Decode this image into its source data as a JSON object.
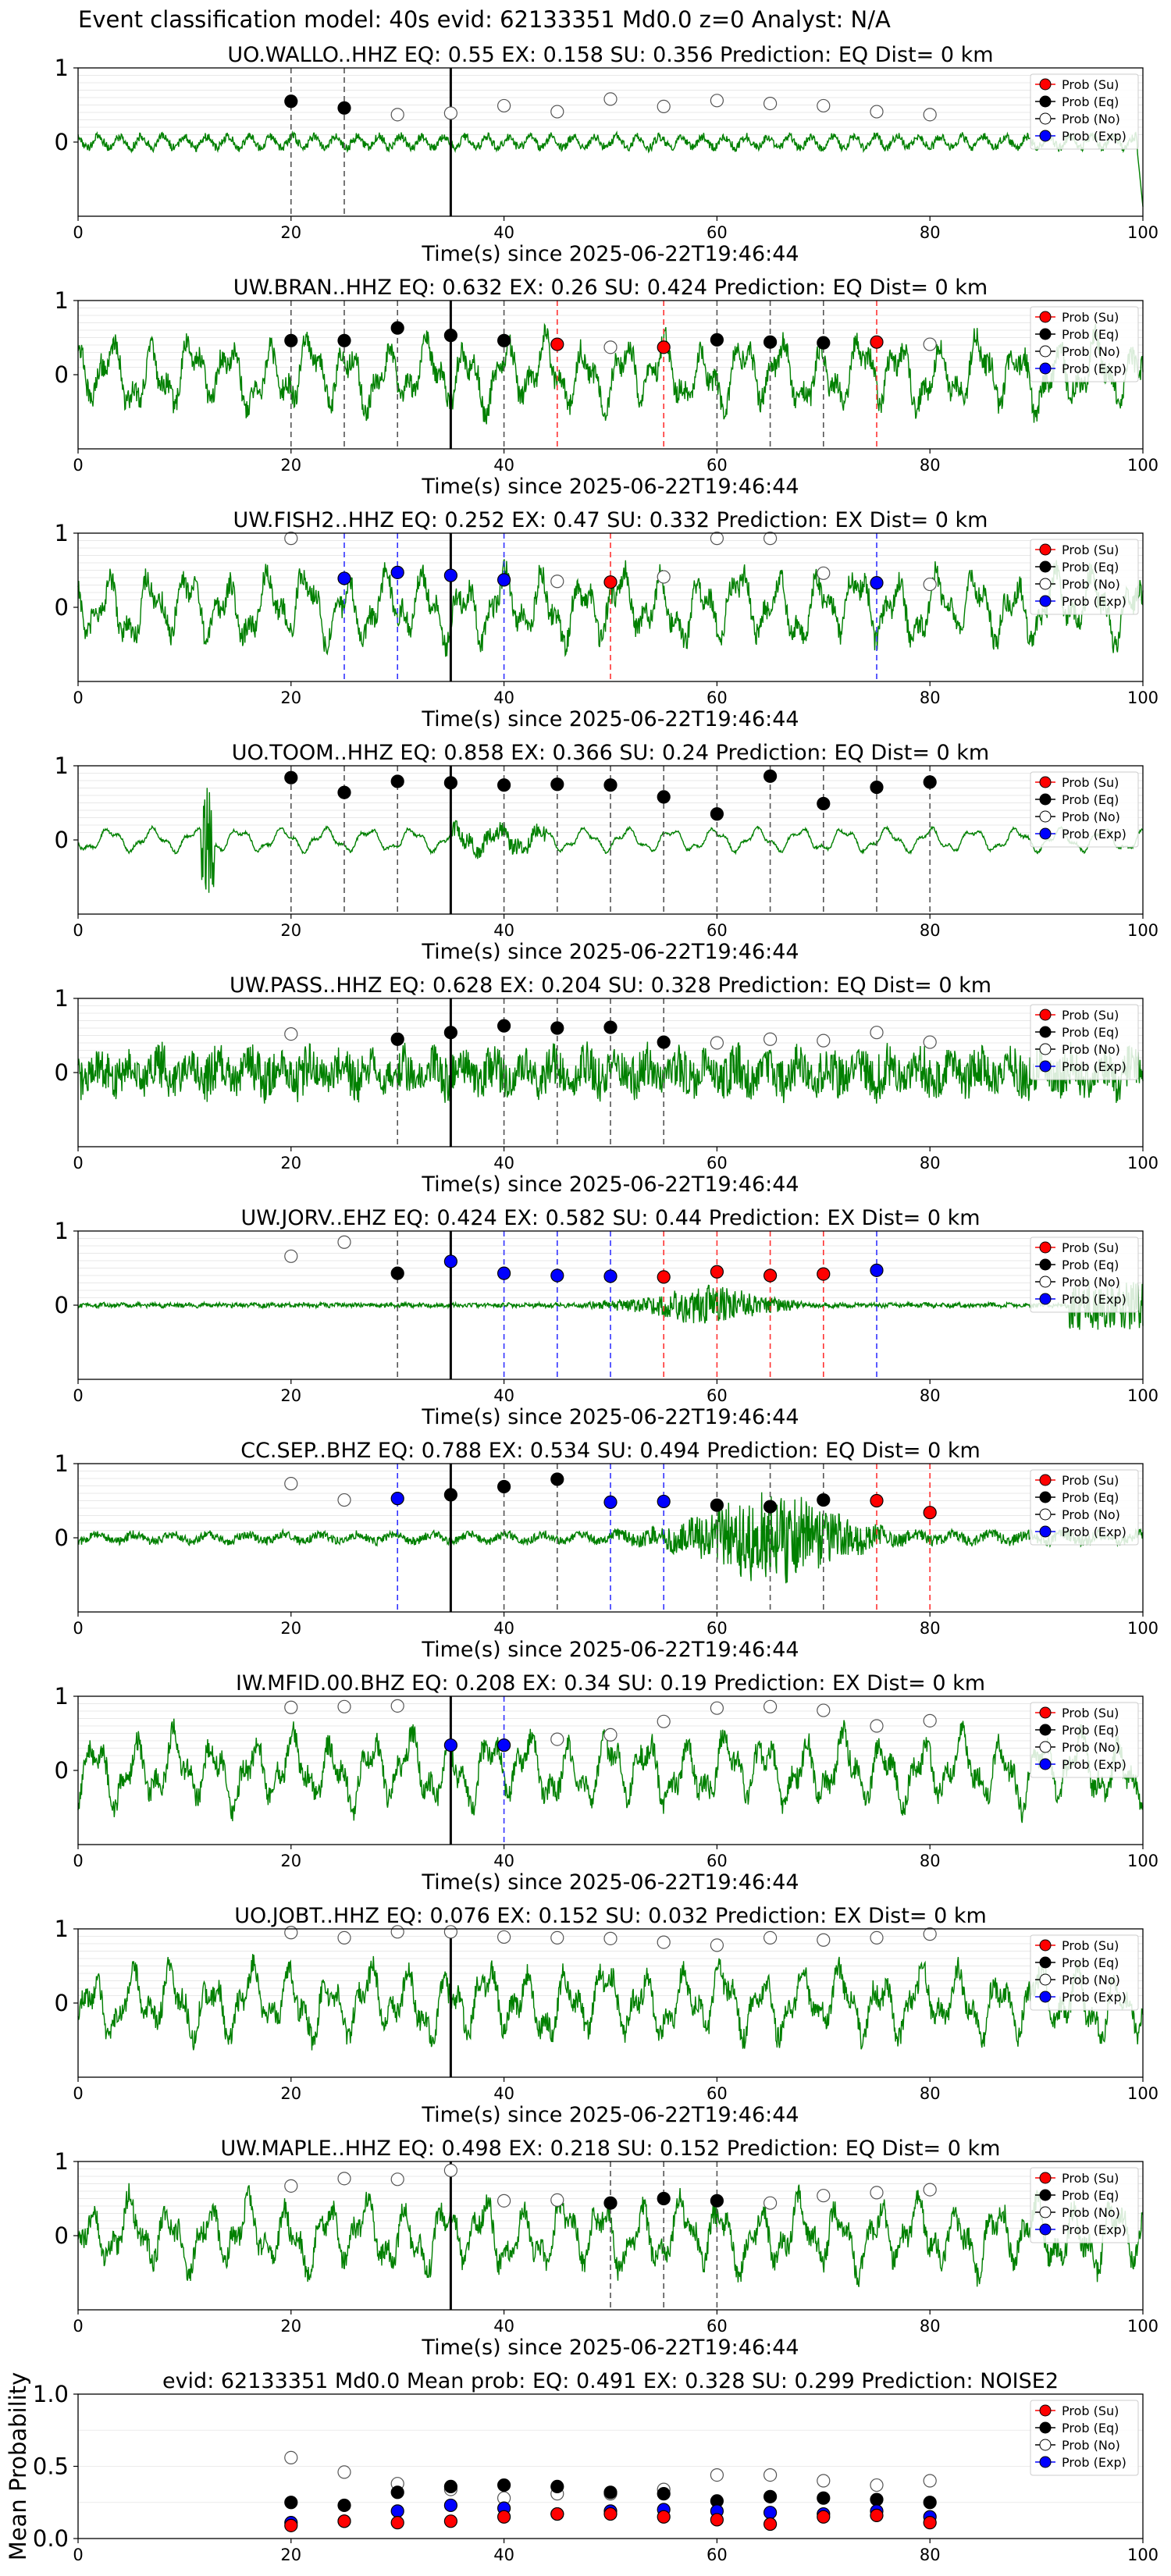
{
  "figure_title": "Event classification model: 40s evid: 62133351 Md0.0 z=0 Analyst: N/A",
  "legend_labels": [
    "Prob (Su)",
    "Prob (Eq)",
    "Prob (No)",
    "Prob (Exp)"
  ],
  "colors": {
    "su": "#ff0000",
    "eq": "#000000",
    "no": "#ffffff",
    "exp": "#0000ff",
    "waveform": "#008000",
    "su_line": "#ff3333",
    "exp_line": "#3333ff"
  },
  "chart_data": [
    {
      "type": "line",
      "title": "UO.WALLO..HHZ   EQ: 0.55   EX: 0.158   SU: 0.356   Prediction: EQ    Dist= 0 km",
      "xlabel": "Time(s) since 2025-06-22T19:46:44",
      "ylabel": "",
      "xlim": [
        0,
        100
      ],
      "ylim": [
        -1,
        1
      ],
      "xticks": [
        0,
        20,
        40,
        60,
        80,
        100
      ],
      "yticks": [
        1,
        0
      ],
      "waveform_style": "low",
      "onset": 35,
      "points": [
        {
          "t": 20,
          "p": 0.55,
          "c": "eq",
          "line": true
        },
        {
          "t": 25,
          "p": 0.46,
          "c": "eq",
          "line": true
        },
        {
          "t": 30,
          "p": 0.37,
          "c": "no"
        },
        {
          "t": 35,
          "p": 0.39,
          "c": "no"
        },
        {
          "t": 40,
          "p": 0.49,
          "c": "no"
        },
        {
          "t": 45,
          "p": 0.41,
          "c": "no"
        },
        {
          "t": 50,
          "p": 0.58,
          "c": "no"
        },
        {
          "t": 55,
          "p": 0.48,
          "c": "no"
        },
        {
          "t": 60,
          "p": 0.56,
          "c": "no"
        },
        {
          "t": 65,
          "p": 0.52,
          "c": "no"
        },
        {
          "t": 70,
          "p": 0.49,
          "c": "no"
        },
        {
          "t": 75,
          "p": 0.41,
          "c": "no"
        },
        {
          "t": 80,
          "p": 0.37,
          "c": "no"
        }
      ]
    },
    {
      "type": "line",
      "title": "UW.BRAN..HHZ   EQ: 0.632   EX: 0.26   SU: 0.424   Prediction: EQ    Dist= 0 km",
      "xlabel": "Time(s) since 2025-06-22T19:46:44",
      "ylabel": "",
      "xlim": [
        0,
        100
      ],
      "ylim": [
        -1,
        1
      ],
      "xticks": [
        0,
        20,
        40,
        60,
        80,
        100
      ],
      "yticks": [
        1,
        0
      ],
      "waveform_style": "wavy",
      "onset": 35,
      "points": [
        {
          "t": 20,
          "p": 0.46,
          "c": "eq",
          "line": true
        },
        {
          "t": 25,
          "p": 0.46,
          "c": "eq",
          "line": true
        },
        {
          "t": 30,
          "p": 0.63,
          "c": "eq",
          "line": true
        },
        {
          "t": 35,
          "p": 0.53,
          "c": "eq"
        },
        {
          "t": 40,
          "p": 0.46,
          "c": "eq",
          "line": true
        },
        {
          "t": 45,
          "p": 0.41,
          "c": "su",
          "line": true
        },
        {
          "t": 50,
          "p": 0.37,
          "c": "no"
        },
        {
          "t": 55,
          "p": 0.37,
          "c": "su",
          "line": true
        },
        {
          "t": 60,
          "p": 0.47,
          "c": "eq",
          "line": true
        },
        {
          "t": 65,
          "p": 0.44,
          "c": "eq",
          "line": true
        },
        {
          "t": 70,
          "p": 0.43,
          "c": "eq",
          "line": true
        },
        {
          "t": 75,
          "p": 0.44,
          "c": "su",
          "line": true
        },
        {
          "t": 80,
          "p": 0.41,
          "c": "no"
        }
      ]
    },
    {
      "type": "line",
      "title": "UW.FISH2..HHZ   EQ: 0.252   EX: 0.47   SU: 0.332   Prediction: EX    Dist= 0 km",
      "xlabel": "Time(s) since 2025-06-22T19:46:44",
      "ylabel": "",
      "xlim": [
        0,
        100
      ],
      "ylim": [
        -1,
        1
      ],
      "xticks": [
        0,
        20,
        40,
        60,
        80,
        100
      ],
      "yticks": [
        1,
        0
      ],
      "waveform_style": "wavy",
      "onset": 35,
      "points": [
        {
          "t": 20,
          "p": 0.93,
          "c": "no"
        },
        {
          "t": 25,
          "p": 0.39,
          "c": "exp",
          "line": true
        },
        {
          "t": 30,
          "p": 0.47,
          "c": "exp",
          "line": true
        },
        {
          "t": 35,
          "p": 0.43,
          "c": "exp"
        },
        {
          "t": 40,
          "p": 0.37,
          "c": "exp",
          "line": true
        },
        {
          "t": 45,
          "p": 0.35,
          "c": "no"
        },
        {
          "t": 50,
          "p": 0.34,
          "c": "su",
          "line": true
        },
        {
          "t": 55,
          "p": 0.41,
          "c": "no"
        },
        {
          "t": 60,
          "p": 0.93,
          "c": "no"
        },
        {
          "t": 65,
          "p": 0.93,
          "c": "no"
        },
        {
          "t": 70,
          "p": 0.46,
          "c": "no"
        },
        {
          "t": 75,
          "p": 0.33,
          "c": "exp",
          "line": true
        },
        {
          "t": 80,
          "p": 0.31,
          "c": "no"
        }
      ]
    },
    {
      "type": "line",
      "title": "UO.TOOM..HHZ   EQ: 0.858   EX: 0.366   SU: 0.24   Prediction: EQ    Dist= 0 km",
      "xlabel": "Time(s) since 2025-06-22T19:46:44",
      "ylabel": "",
      "xlim": [
        0,
        100
      ],
      "ylim": [
        -1,
        1
      ],
      "xticks": [
        0,
        20,
        40,
        60,
        80,
        100
      ],
      "yticks": [
        1,
        0
      ],
      "waveform_style": "smooth",
      "onset": 35,
      "points": [
        {
          "t": 20,
          "p": 0.84,
          "c": "eq",
          "line": true
        },
        {
          "t": 25,
          "p": 0.64,
          "c": "eq",
          "line": true
        },
        {
          "t": 30,
          "p": 0.79,
          "c": "eq",
          "line": true
        },
        {
          "t": 35,
          "p": 0.77,
          "c": "eq"
        },
        {
          "t": 40,
          "p": 0.74,
          "c": "eq",
          "line": true
        },
        {
          "t": 45,
          "p": 0.75,
          "c": "eq",
          "line": true
        },
        {
          "t": 50,
          "p": 0.74,
          "c": "eq",
          "line": true
        },
        {
          "t": 55,
          "p": 0.58,
          "c": "eq",
          "line": true
        },
        {
          "t": 60,
          "p": 0.35,
          "c": "eq",
          "line": true
        },
        {
          "t": 65,
          "p": 0.86,
          "c": "eq",
          "line": true
        },
        {
          "t": 70,
          "p": 0.49,
          "c": "eq",
          "line": true
        },
        {
          "t": 75,
          "p": 0.71,
          "c": "eq",
          "line": true
        },
        {
          "t": 80,
          "p": 0.78,
          "c": "eq",
          "line": true
        }
      ]
    },
    {
      "type": "line",
      "title": "UW.PASS..HHZ   EQ: 0.628   EX: 0.204   SU: 0.328   Prediction: EQ    Dist= 0 km",
      "xlabel": "Time(s) since 2025-06-22T19:46:44",
      "ylabel": "",
      "xlim": [
        0,
        100
      ],
      "ylim": [
        -1,
        1
      ],
      "xticks": [
        0,
        20,
        40,
        60,
        80,
        100
      ],
      "yticks": [
        1,
        0
      ],
      "waveform_style": "noisy",
      "onset": 35,
      "points": [
        {
          "t": 20,
          "p": 0.52,
          "c": "no"
        },
        {
          "t": 30,
          "p": 0.45,
          "c": "eq",
          "line": true
        },
        {
          "t": 35,
          "p": 0.54,
          "c": "eq"
        },
        {
          "t": 40,
          "p": 0.63,
          "c": "eq",
          "line": true
        },
        {
          "t": 45,
          "p": 0.6,
          "c": "eq",
          "line": true
        },
        {
          "t": 50,
          "p": 0.61,
          "c": "eq",
          "line": true
        },
        {
          "t": 55,
          "p": 0.41,
          "c": "eq",
          "line": true
        },
        {
          "t": 60,
          "p": 0.4,
          "c": "no"
        },
        {
          "t": 65,
          "p": 0.45,
          "c": "no"
        },
        {
          "t": 70,
          "p": 0.43,
          "c": "no"
        },
        {
          "t": 75,
          "p": 0.54,
          "c": "no"
        },
        {
          "t": 80,
          "p": 0.41,
          "c": "no"
        }
      ]
    },
    {
      "type": "line",
      "title": "UW.JORV..EHZ   EQ: 0.424   EX: 0.582   SU: 0.44   Prediction: EX    Dist= 0 km",
      "xlabel": "Time(s) since 2025-06-22T19:46:44",
      "ylabel": "",
      "xlim": [
        0,
        100
      ],
      "ylim": [
        -1,
        1
      ],
      "xticks": [
        0,
        20,
        40,
        60,
        80,
        100
      ],
      "yticks": [
        1,
        0
      ],
      "waveform_style": "quiet_burst",
      "onset": 35,
      "points": [
        {
          "t": 20,
          "p": 0.66,
          "c": "no"
        },
        {
          "t": 25,
          "p": 0.85,
          "c": "no"
        },
        {
          "t": 30,
          "p": 0.43,
          "c": "eq",
          "line": true
        },
        {
          "t": 35,
          "p": 0.59,
          "c": "exp"
        },
        {
          "t": 40,
          "p": 0.43,
          "c": "exp",
          "line": true
        },
        {
          "t": 45,
          "p": 0.4,
          "c": "exp",
          "line": true
        },
        {
          "t": 50,
          "p": 0.39,
          "c": "exp",
          "line": true
        },
        {
          "t": 55,
          "p": 0.38,
          "c": "su",
          "line": true
        },
        {
          "t": 60,
          "p": 0.45,
          "c": "su",
          "line": true
        },
        {
          "t": 65,
          "p": 0.4,
          "c": "su",
          "line": true
        },
        {
          "t": 70,
          "p": 0.42,
          "c": "su",
          "line": true
        },
        {
          "t": 75,
          "p": 0.47,
          "c": "exp",
          "line": true
        }
      ]
    },
    {
      "type": "line",
      "title": "CC.SEP..BHZ   EQ: 0.788   EX: 0.534   SU: 0.494   Prediction: EQ    Dist= 0 km",
      "xlabel": "Time(s) since 2025-06-22T19:46:44",
      "ylabel": "",
      "xlim": [
        0,
        100
      ],
      "ylim": [
        -1,
        1
      ],
      "xticks": [
        0,
        20,
        40,
        60,
        80,
        100
      ],
      "yticks": [
        1,
        0
      ],
      "waveform_style": "quiet_burst2",
      "onset": 35,
      "points": [
        {
          "t": 20,
          "p": 0.73,
          "c": "no"
        },
        {
          "t": 25,
          "p": 0.51,
          "c": "no"
        },
        {
          "t": 30,
          "p": 0.53,
          "c": "exp",
          "line": true
        },
        {
          "t": 35,
          "p": 0.58,
          "c": "eq"
        },
        {
          "t": 40,
          "p": 0.69,
          "c": "eq",
          "line": true
        },
        {
          "t": 45,
          "p": 0.79,
          "c": "eq",
          "line": true
        },
        {
          "t": 50,
          "p": 0.48,
          "c": "exp",
          "line": true
        },
        {
          "t": 55,
          "p": 0.49,
          "c": "exp",
          "line": true
        },
        {
          "t": 60,
          "p": 0.44,
          "c": "eq",
          "line": true
        },
        {
          "t": 65,
          "p": 0.42,
          "c": "eq",
          "line": true
        },
        {
          "t": 70,
          "p": 0.51,
          "c": "eq",
          "line": true
        },
        {
          "t": 75,
          "p": 0.5,
          "c": "su",
          "line": true
        },
        {
          "t": 80,
          "p": 0.34,
          "c": "su",
          "line": true
        }
      ]
    },
    {
      "type": "line",
      "title": "IW.MFID.00.BHZ   EQ: 0.208   EX: 0.34   SU: 0.19   Prediction: EX    Dist= 0 km",
      "xlabel": "Time(s) since 2025-06-22T19:46:44",
      "ylabel": "",
      "xlim": [
        0,
        100
      ],
      "ylim": [
        -1,
        1
      ],
      "xticks": [
        0,
        20,
        40,
        60,
        80,
        100
      ],
      "yticks": [
        1,
        0
      ],
      "waveform_style": "wavy",
      "onset": 35,
      "points": [
        {
          "t": 20,
          "p": 0.85,
          "c": "no"
        },
        {
          "t": 25,
          "p": 0.86,
          "c": "no"
        },
        {
          "t": 30,
          "p": 0.87,
          "c": "no"
        },
        {
          "t": 35,
          "p": 0.34,
          "c": "exp"
        },
        {
          "t": 40,
          "p": 0.34,
          "c": "exp",
          "line": true
        },
        {
          "t": 45,
          "p": 0.42,
          "c": "no"
        },
        {
          "t": 50,
          "p": 0.48,
          "c": "no"
        },
        {
          "t": 55,
          "p": 0.66,
          "c": "no"
        },
        {
          "t": 60,
          "p": 0.84,
          "c": "no"
        },
        {
          "t": 65,
          "p": 0.86,
          "c": "no"
        },
        {
          "t": 70,
          "p": 0.81,
          "c": "no"
        },
        {
          "t": 75,
          "p": 0.6,
          "c": "no"
        },
        {
          "t": 80,
          "p": 0.67,
          "c": "no"
        }
      ]
    },
    {
      "type": "line",
      "title": "UO.JOBT..HHZ   EQ: 0.076   EX: 0.152   SU: 0.032   Prediction: EX    Dist= 0 km",
      "xlabel": "Time(s) since 2025-06-22T19:46:44",
      "ylabel": "",
      "xlim": [
        0,
        100
      ],
      "ylim": [
        -1,
        1
      ],
      "xticks": [
        0,
        20,
        40,
        60,
        80,
        100
      ],
      "yticks": [
        1,
        0
      ],
      "waveform_style": "wavy",
      "onset": 35,
      "points": [
        {
          "t": 20,
          "p": 0.95,
          "c": "no"
        },
        {
          "t": 25,
          "p": 0.88,
          "c": "no"
        },
        {
          "t": 30,
          "p": 0.96,
          "c": "no"
        },
        {
          "t": 35,
          "p": 0.96,
          "c": "no"
        },
        {
          "t": 40,
          "p": 0.89,
          "c": "no"
        },
        {
          "t": 45,
          "p": 0.88,
          "c": "no"
        },
        {
          "t": 50,
          "p": 0.87,
          "c": "no"
        },
        {
          "t": 55,
          "p": 0.82,
          "c": "no"
        },
        {
          "t": 60,
          "p": 0.78,
          "c": "no"
        },
        {
          "t": 65,
          "p": 0.88,
          "c": "no"
        },
        {
          "t": 70,
          "p": 0.85,
          "c": "no"
        },
        {
          "t": 75,
          "p": 0.88,
          "c": "no"
        },
        {
          "t": 80,
          "p": 0.93,
          "c": "no"
        }
      ]
    },
    {
      "type": "line",
      "title": "UW.MAPLE..HHZ   EQ: 0.498   EX: 0.218   SU: 0.152   Prediction: EQ    Dist= 0 km",
      "xlabel": "Time(s) since 2025-06-22T19:46:44",
      "ylabel": "",
      "xlim": [
        0,
        100
      ],
      "ylim": [
        -1,
        1
      ],
      "xticks": [
        0,
        20,
        40,
        60,
        80,
        100
      ],
      "yticks": [
        1,
        0
      ],
      "waveform_style": "wavy",
      "onset": 35,
      "points": [
        {
          "t": 20,
          "p": 0.67,
          "c": "no"
        },
        {
          "t": 25,
          "p": 0.77,
          "c": "no"
        },
        {
          "t": 30,
          "p": 0.76,
          "c": "no"
        },
        {
          "t": 35,
          "p": 0.88,
          "c": "no"
        },
        {
          "t": 40,
          "p": 0.47,
          "c": "no"
        },
        {
          "t": 45,
          "p": 0.48,
          "c": "no"
        },
        {
          "t": 50,
          "p": 0.44,
          "c": "eq",
          "line": true
        },
        {
          "t": 55,
          "p": 0.5,
          "c": "eq",
          "line": true
        },
        {
          "t": 60,
          "p": 0.47,
          "c": "eq",
          "line": true
        },
        {
          "t": 65,
          "p": 0.44,
          "c": "no"
        },
        {
          "t": 70,
          "p": 0.54,
          "c": "no"
        },
        {
          "t": 75,
          "p": 0.58,
          "c": "no"
        },
        {
          "t": 80,
          "p": 0.62,
          "c": "no"
        }
      ]
    },
    {
      "type": "scatter",
      "title": "evid: 62133351   Md0.0   Mean prob:   EQ: 0.491   EX: 0.328   SU: 0.299   Prediction: NOISE2",
      "xlabel": "",
      "ylabel": "Mean Probability",
      "xlim": [
        0,
        100
      ],
      "ylim": [
        0,
        1
      ],
      "xticks": [
        0,
        20,
        40,
        60,
        80,
        100
      ],
      "yticks": [
        1.0,
        0.5,
        0.0
      ],
      "ytick_labels": [
        "1.0",
        "0.5",
        "0.0"
      ],
      "x": [
        20,
        25,
        30,
        35,
        40,
        45,
        50,
        55,
        60,
        65,
        70,
        75,
        80
      ],
      "series": [
        {
          "name": "Prob (No)",
          "c": "no",
          "values": [
            0.56,
            0.46,
            0.38,
            0.34,
            0.28,
            0.31,
            0.31,
            0.34,
            0.44,
            0.44,
            0.4,
            0.37,
            0.4
          ]
        },
        {
          "name": "Prob (Eq)",
          "c": "eq",
          "values": [
            0.25,
            0.23,
            0.32,
            0.36,
            0.37,
            0.36,
            0.32,
            0.31,
            0.26,
            0.29,
            0.28,
            0.27,
            0.25
          ]
        },
        {
          "name": "Prob (Exp)",
          "c": "exp",
          "values": [
            0.11,
            0.12,
            0.19,
            0.23,
            0.21,
            0.17,
            0.19,
            0.2,
            0.19,
            0.18,
            0.17,
            0.19,
            0.15
          ]
        },
        {
          "name": "Prob (Su)",
          "c": "su",
          "values": [
            0.09,
            0.12,
            0.11,
            0.12,
            0.15,
            0.17,
            0.17,
            0.15,
            0.13,
            0.1,
            0.15,
            0.16,
            0.11
          ]
        }
      ]
    }
  ]
}
